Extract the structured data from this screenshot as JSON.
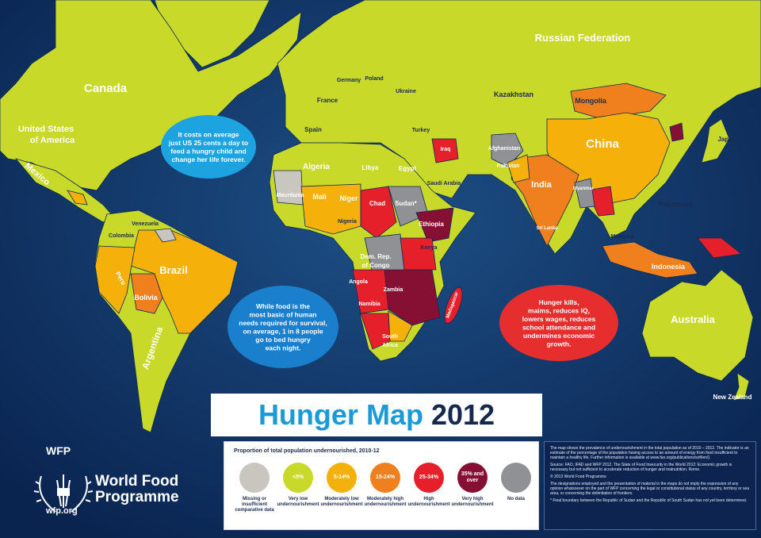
{
  "header": {
    "title": "Hunger Map",
    "year": "2012"
  },
  "countries": [
    "Canada",
    "United States",
    "of America",
    "Mexico",
    "Russian Federation",
    "Kazakhstan",
    "Mongolia",
    "China",
    "India",
    "Japan",
    "Philippines",
    "Indonesia",
    "Australia",
    "New Zealand",
    "Malaysia",
    "Afghanistan",
    "Pakistan",
    "Myanmar",
    "Sri Lanka",
    "Iraq",
    "Saudi Arabia",
    "Turkey",
    "Spain",
    "France",
    "Germany",
    "Poland",
    "Ukraine",
    "Algeria",
    "Libya",
    "Egypt",
    "Mauritania",
    "Mali",
    "Niger",
    "Chad",
    "Sudan*",
    "Nigeria",
    "Ethiopia",
    "Kenya",
    "Dem. Rep.",
    "of Congo",
    "Angola",
    "Zambia",
    "Namibia",
    "South",
    "Africa",
    "Colombia",
    "Venezuela",
    "Peru",
    "Brazil",
    "Bolivia",
    "Argentina",
    "Madagascar"
  ],
  "bubbles": [
    {
      "lines": [
        "It costs on average",
        "just US 25 cents a day to",
        "feed a hungry child and",
        "change her life forever."
      ]
    },
    {
      "lines": [
        "While food is the",
        "most basic of human",
        "needs required for survival,",
        "on average, 1 in 8 people",
        "go to bed hungry",
        "each night."
      ]
    },
    {
      "lines": [
        "Hunger kills,",
        "maims, reduces IQ,",
        "lowers wages, reduces",
        "school attendance and",
        "undermines economic",
        "growth."
      ]
    }
  ],
  "legend": {
    "title": "Proportion of total population undernourished, 2010-12",
    "items": [
      {
        "caption": "Missing or insufficient comparative data",
        "color": "#c9c6bf"
      },
      {
        "label": "<5%",
        "caption": "Very low undernourishment",
        "color": "#c8d92a"
      },
      {
        "label": "5-14%",
        "caption": "Moderately low undernourishment",
        "color": "#f5b10a"
      },
      {
        "label": "15-24%",
        "caption": "Moderately high undernourishment",
        "color": "#f0801e"
      },
      {
        "label": "25-34%",
        "caption": "High undernourishment",
        "color": "#e5202a"
      },
      {
        "label": "35% and over",
        "caption": "Very high undernourishment",
        "color": "#861033"
      },
      {
        "caption": "No data",
        "color": "#8f9194"
      }
    ]
  },
  "notes": [
    "The map shows the prevalence of undernourishment in the total population as of 2010 – 2012. The indicator is an estimate of the percentage of the population having access to an amount of energy from food insufficient to maintain a healthy life. Further information is available at www.fao.org/publications/sofi/en/).",
    "Source: FAO, IFAD and WFP 2012. The State of Food Insecurity in the World 2012: Economic growth is necessary but not sufficient to accelerate reduction of hunger and malnutrition. Rome.",
    "© 2013 World Food Programme",
    "The designations employed and the presentation of material in the maps do not imply the expression of any opinion whatsoever on the part of WFP concerning the legal or constitutional status of any country, territory or sea area, or concerning the delimitation of frontiers.",
    "* Final boundary between the Republic of Sudan and the Republic of South Sudan has not yet been determined."
  ],
  "logo": {
    "acronym": "WFP",
    "name_line1": "World Food",
    "name_line2": "Programme",
    "url": "wfp.org"
  }
}
